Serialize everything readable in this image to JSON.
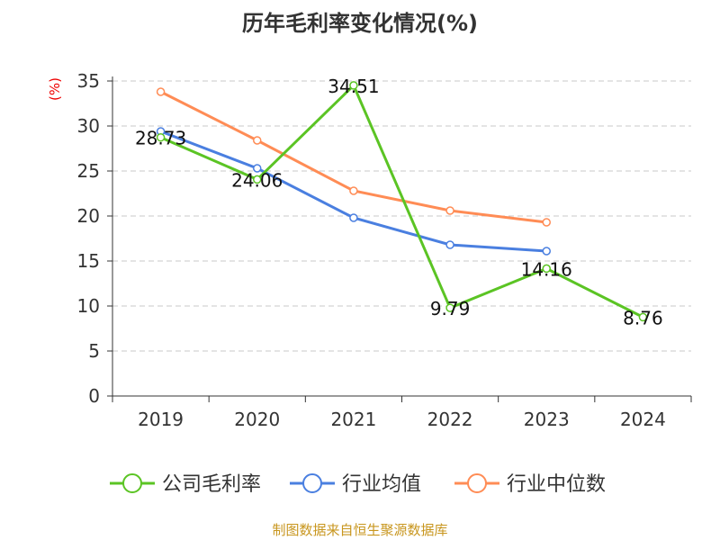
{
  "chart_data": {
    "type": "line",
    "title": "历年毛利率变化情况(%)",
    "ylabel": "(%)",
    "categories": [
      "2019",
      "2020",
      "2021",
      "2022",
      "2023",
      "2024"
    ],
    "ylim": [
      0,
      35
    ],
    "yticks": [
      0,
      5,
      10,
      15,
      20,
      25,
      30,
      35
    ],
    "grid": true,
    "legend_position": "bottom",
    "series": [
      {
        "name": "公司毛利率",
        "color": "#5bc424",
        "values": [
          28.73,
          24.06,
          34.51,
          9.79,
          14.16,
          8.76
        ],
        "labels": [
          "28.73",
          "24.06",
          "34.51",
          "9.79",
          "14.16",
          "8.76"
        ]
      },
      {
        "name": "行业均值",
        "color": "#4a7fe0",
        "values": [
          29.4,
          25.3,
          19.8,
          16.8,
          16.1,
          null
        ]
      },
      {
        "name": "行业中位数",
        "color": "#ff8c55",
        "values": [
          33.8,
          28.4,
          22.8,
          20.6,
          19.3,
          null
        ]
      }
    ]
  },
  "source": "制图数据来自恒生聚源数据库"
}
